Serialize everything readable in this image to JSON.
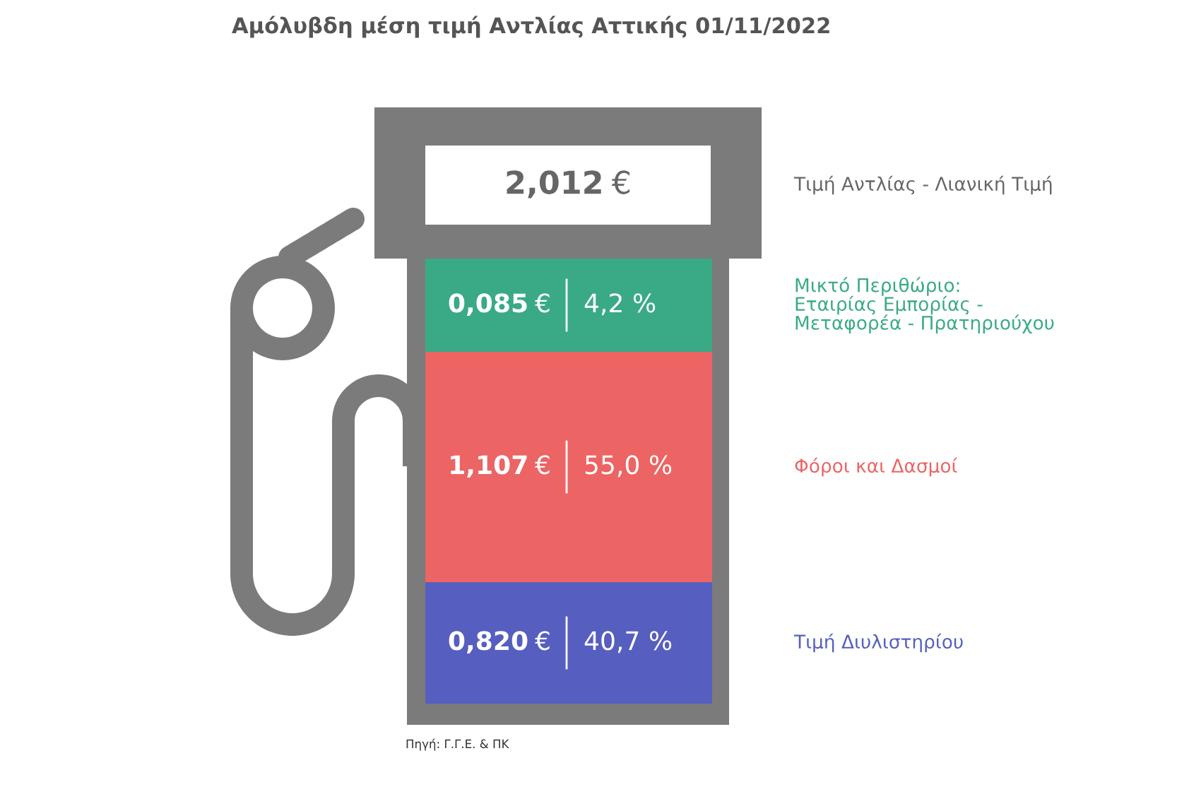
{
  "chart_data": {
    "type": "other",
    "title": "Αμόλυβδη μέση τιμή Αντλίας Αττικής 01/11/2022",
    "categories": [
      "Μικτό Περιθώριο:\nΕταιρίας Εμπορίας -\nΜεταφορέα - Πρατηριούχου",
      "Φόροι και Δασμοί",
      "Τιμή Διυλιστηρίου"
    ],
    "series": [
      {
        "values": [
          0.085,
          1.107,
          0.82
        ],
        "colors": [
          "#3aaa86",
          "#ec6464",
          "#565fbf"
        ],
        "value_labels": [
          "0,085 €",
          "1,107 €",
          "0,820 €"
        ]
      },
      {
        "values": [
          4.2,
          55.0,
          40.7
        ],
        "value_labels": [
          "4,2 %",
          "55,0 %",
          "40,7 %"
        ]
      }
    ],
    "totals": [
      "2,012 €"
    ],
    "annotations": [
      "Τιμή Αντλίας - Λιανική Τιμή",
      "Πηγή: Γ.Γ.Ε. & ΠΚ"
    ]
  }
}
